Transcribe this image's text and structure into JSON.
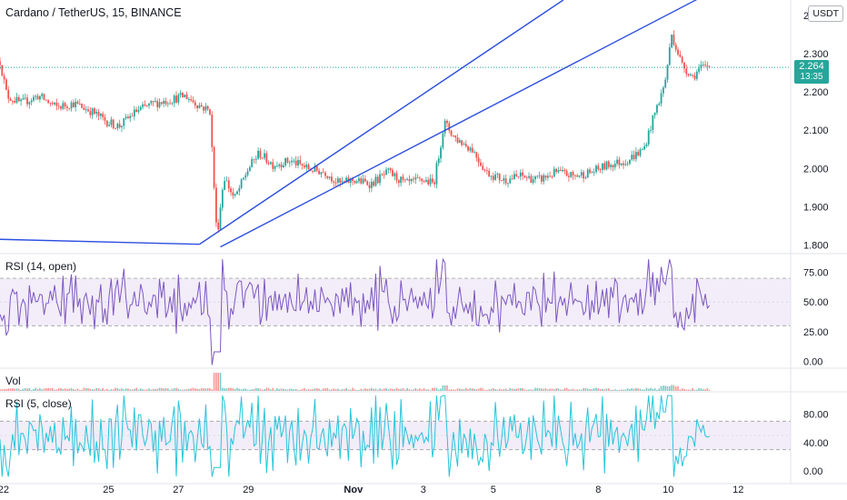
{
  "header": {
    "title": "Cardano / TetherUS, 15, BINANCE",
    "currency": "USDT"
  },
  "last_price": {
    "value": "2.264",
    "countdown": "13:35",
    "color": "#26a69a"
  },
  "colors": {
    "up": "#26a69a",
    "down": "#ef5350",
    "trendline": "#2c4ee0",
    "rsi1": "#7e57c2",
    "rsi_band": "#ede7f6",
    "rsi2": "#26c6da",
    "grid_text": "#131722"
  },
  "chart_data": [
    {
      "type": "candlestick",
      "title": "Cardano / TetherUS, 15, BINANCE",
      "yaxis_ticks": [
        "1.800",
        "1.900",
        "2.000",
        "2.100",
        "2.200",
        "2.300",
        "2.400"
      ],
      "ylim": [
        1.78,
        2.44
      ],
      "x_tick_labels": [
        "22",
        "25",
        "27",
        "29",
        "Nov",
        "3",
        "5",
        "8",
        "10",
        "12"
      ],
      "x_tick_days": [
        22,
        25,
        27,
        29,
        32,
        34,
        36,
        39,
        41,
        43
      ],
      "xlim_days": [
        21.9,
        44.5
      ],
      "last_price": 2.264,
      "close_path": [
        [
          21.9,
          2.28
        ],
        [
          22.1,
          2.19
        ],
        [
          22.5,
          2.17
        ],
        [
          23.0,
          2.19
        ],
        [
          23.5,
          2.16
        ],
        [
          24.0,
          2.17
        ],
        [
          24.5,
          2.15
        ],
        [
          25.0,
          2.12
        ],
        [
          25.3,
          2.11
        ],
        [
          25.8,
          2.15
        ],
        [
          26.3,
          2.17
        ],
        [
          26.8,
          2.18
        ],
        [
          27.2,
          2.19
        ],
        [
          27.5,
          2.17
        ],
        [
          27.9,
          2.15
        ],
        [
          28.1,
          1.82
        ],
        [
          28.3,
          1.98
        ],
        [
          28.6,
          1.92
        ],
        [
          29.0,
          2.0
        ],
        [
          29.3,
          2.04
        ],
        [
          29.7,
          2.01
        ],
        [
          30.2,
          2.02
        ],
        [
          30.7,
          2.0
        ],
        [
          31.2,
          1.99
        ],
        [
          31.6,
          1.96
        ],
        [
          32.0,
          1.97
        ],
        [
          32.5,
          1.96
        ],
        [
          33.0,
          1.99
        ],
        [
          33.5,
          1.96
        ],
        [
          34.0,
          1.97
        ],
        [
          34.3,
          1.96
        ],
        [
          34.6,
          2.12
        ],
        [
          34.9,
          2.08
        ],
        [
          35.4,
          2.05
        ],
        [
          35.8,
          1.99
        ],
        [
          36.3,
          1.97
        ],
        [
          36.8,
          1.98
        ],
        [
          37.3,
          1.97
        ],
        [
          37.8,
          1.99
        ],
        [
          38.3,
          1.98
        ],
        [
          38.8,
          1.99
        ],
        [
          39.3,
          2.01
        ],
        [
          39.8,
          2.02
        ],
        [
          40.3,
          2.05
        ],
        [
          40.6,
          2.14
        ],
        [
          40.9,
          2.22
        ],
        [
          41.1,
          2.35
        ],
        [
          41.4,
          2.27
        ],
        [
          41.7,
          2.24
        ],
        [
          41.9,
          2.26
        ],
        [
          42.2,
          2.27
        ]
      ],
      "trendlines": [
        {
          "from": [
            21.9,
            1.815
          ],
          "to": [
            27.6,
            1.802
          ]
        },
        {
          "from": [
            27.6,
            1.802
          ],
          "to": [
            38.0,
            2.44
          ]
        },
        {
          "from": [
            28.2,
            1.795
          ],
          "to": [
            42.0,
            2.45
          ]
        }
      ]
    },
    {
      "type": "line",
      "name": "RSI (14, open)",
      "yaxis_ticks": [
        "0.00",
        "25.00",
        "50.00",
        "75.00"
      ],
      "ylim": [
        -5,
        90
      ],
      "bands": [
        30,
        70
      ]
    },
    {
      "type": "bar",
      "name": "Vol"
    },
    {
      "type": "line",
      "name": "RSI (5, close)",
      "yaxis_ticks": [
        "0.00",
        "40.00",
        "80.00"
      ],
      "ylim": [
        -10,
        110
      ],
      "bands": [
        30,
        70
      ]
    }
  ]
}
